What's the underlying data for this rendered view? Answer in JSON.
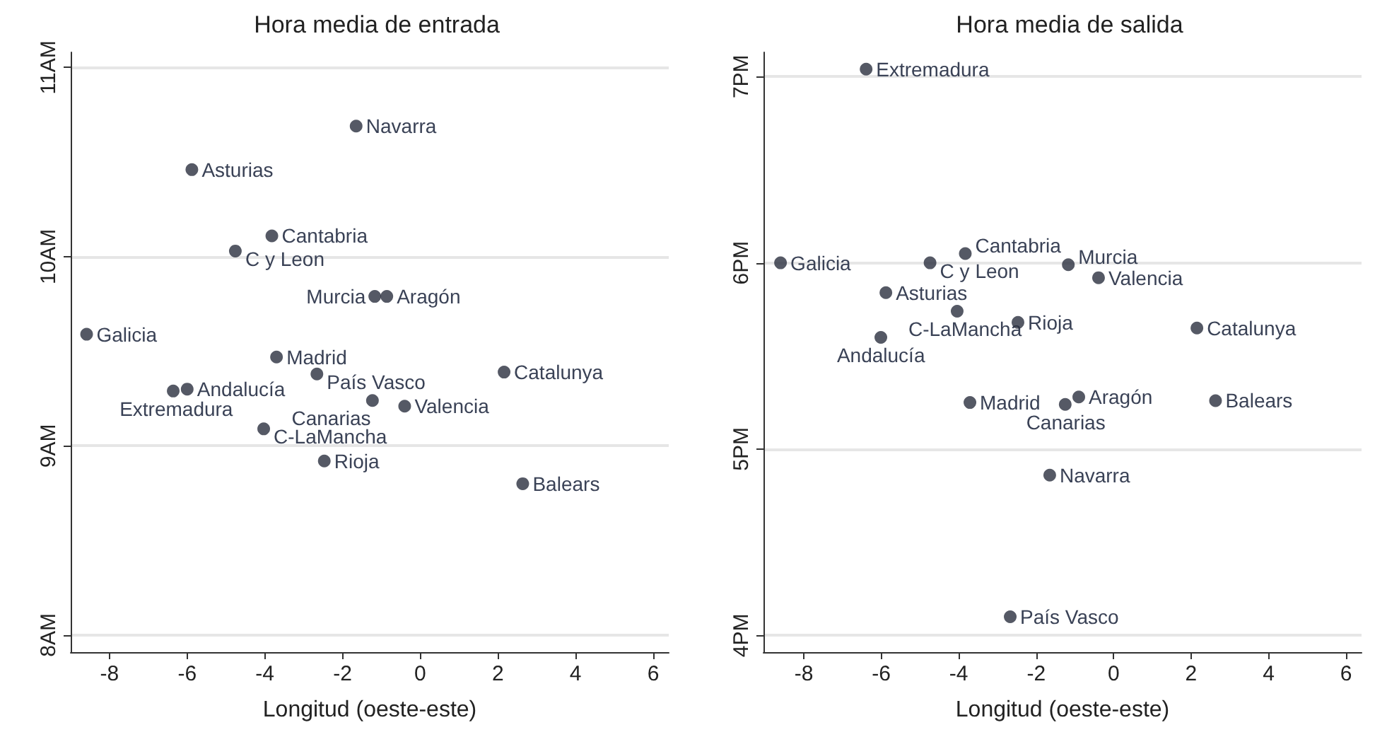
{
  "chart_data": [
    {
      "type": "scatter",
      "title": "Hora media de entrada",
      "xlabel": "Longitud (oeste-este)",
      "marker": "circle",
      "grid": "y",
      "xlim": [
        -9,
        6.4
      ],
      "xticks": [
        -8,
        -6,
        -4,
        -2,
        0,
        2,
        4,
        6
      ],
      "ylim": [
        7.91,
        11.08
      ],
      "yticks": [
        {
          "value": 8,
          "label": "8AM"
        },
        {
          "value": 9,
          "label": "9AM"
        },
        {
          "value": 10,
          "label": "10AM"
        },
        {
          "value": 11,
          "label": "11AM"
        }
      ],
      "series": [
        {
          "color": "#2b2f3f",
          "x": [
            -1.65,
            -5.88,
            -3.82,
            -4.76,
            -0.86,
            -1.17,
            -8.59,
            -3.7,
            -2.66,
            2.16,
            -6.0,
            -6.36,
            -1.23,
            -0.4,
            -4.03,
            -2.47,
            2.64
          ],
          "values": [
            10.69,
            10.46,
            10.11,
            10.03,
            9.79,
            9.79,
            9.59,
            9.47,
            9.38,
            9.39,
            9.3,
            9.29,
            9.24,
            9.21,
            9.09,
            8.92,
            8.8
          ]
        }
      ],
      "annotations": [
        {
          "text": "Navarra",
          "x": -1.65,
          "y": 10.69
        },
        {
          "text": "Asturias",
          "x": -5.88,
          "y": 10.46
        },
        {
          "text": "Cantabria",
          "x": -3.82,
          "y": 10.11
        },
        {
          "text": "C y Leon",
          "x": -4.76,
          "y": 10.03
        },
        {
          "text": "Aragón",
          "x": -0.86,
          "y": 9.79
        },
        {
          "text": "Murcia",
          "x": -1.17,
          "y": 9.79
        },
        {
          "text": "Galicia",
          "x": -8.59,
          "y": 9.59
        },
        {
          "text": "Madrid",
          "x": -3.7,
          "y": 9.47
        },
        {
          "text": "País Vasco",
          "x": -2.66,
          "y": 9.38
        },
        {
          "text": "Catalunya",
          "x": 2.16,
          "y": 9.39
        },
        {
          "text": "Andalucía",
          "x": -6.0,
          "y": 9.3
        },
        {
          "text": "Extremadura",
          "x": -6.36,
          "y": 9.29
        },
        {
          "text": "Canarias",
          "x": -1.23,
          "y": 9.24
        },
        {
          "text": "Valencia",
          "x": -0.4,
          "y": 9.21
        },
        {
          "text": "C-LaMancha",
          "x": -4.03,
          "y": 9.09
        },
        {
          "text": "Rioja",
          "x": -2.47,
          "y": 8.92
        },
        {
          "text": "Balears",
          "x": 2.64,
          "y": 8.8
        }
      ]
    },
    {
      "type": "scatter",
      "title": "Hora media de salida",
      "xlabel": "Longitud (oeste-este)",
      "marker": "circle",
      "grid": "y",
      "xlim": [
        -9.04,
        6.4
      ],
      "xticks": [
        -8,
        -6,
        -4,
        -2,
        0,
        2,
        4,
        6
      ],
      "ylim": [
        3.91,
        7.13
      ],
      "yticks": [
        {
          "value": 4,
          "label": "4PM"
        },
        {
          "value": 5,
          "label": "5PM"
        },
        {
          "value": 6,
          "label": "6PM"
        },
        {
          "value": 7,
          "label": "7PM"
        }
      ],
      "series": [
        {
          "color": "#2b2f3f",
          "x": [
            -6.39,
            -8.6,
            -3.83,
            -4.74,
            -1.17,
            -0.39,
            -5.88,
            -4.04,
            -2.47,
            -6.01,
            2.15,
            -0.9,
            -1.25,
            -3.71,
            2.63,
            -1.65,
            -2.67
          ],
          "values": [
            7.04,
            6.0,
            6.05,
            6.0,
            5.99,
            5.92,
            5.84,
            5.74,
            5.68,
            5.6,
            5.65,
            5.28,
            5.24,
            5.25,
            5.26,
            4.86,
            4.1
          ]
        }
      ],
      "annotations": [
        {
          "text": "Extremadura",
          "x": -6.39,
          "y": 7.04
        },
        {
          "text": "Galicia",
          "x": -8.6,
          "y": 6.0
        },
        {
          "text": "Cantabria",
          "x": -3.83,
          "y": 6.05
        },
        {
          "text": "C y Leon",
          "x": -4.74,
          "y": 6.0
        },
        {
          "text": "Murcia",
          "x": -1.17,
          "y": 5.99
        },
        {
          "text": "Valencia",
          "x": -0.39,
          "y": 5.92
        },
        {
          "text": "Asturias",
          "x": -5.88,
          "y": 5.84
        },
        {
          "text": "C-LaMancha",
          "x": -4.04,
          "y": 5.74
        },
        {
          "text": "Rioja",
          "x": -2.47,
          "y": 5.68
        },
        {
          "text": "Andalucía",
          "x": -6.01,
          "y": 5.6
        },
        {
          "text": "Catalunya",
          "x": 2.15,
          "y": 5.65
        },
        {
          "text": "Aragón",
          "x": -0.9,
          "y": 5.28
        },
        {
          "text": "Canarias",
          "x": -1.25,
          "y": 5.24
        },
        {
          "text": "Madrid",
          "x": -3.71,
          "y": 5.25
        },
        {
          "text": "Balears",
          "x": 2.63,
          "y": 5.26
        },
        {
          "text": "Navarra",
          "x": -1.65,
          "y": 4.86
        },
        {
          "text": "País Vasco",
          "x": -2.67,
          "y": 4.1
        }
      ]
    }
  ]
}
